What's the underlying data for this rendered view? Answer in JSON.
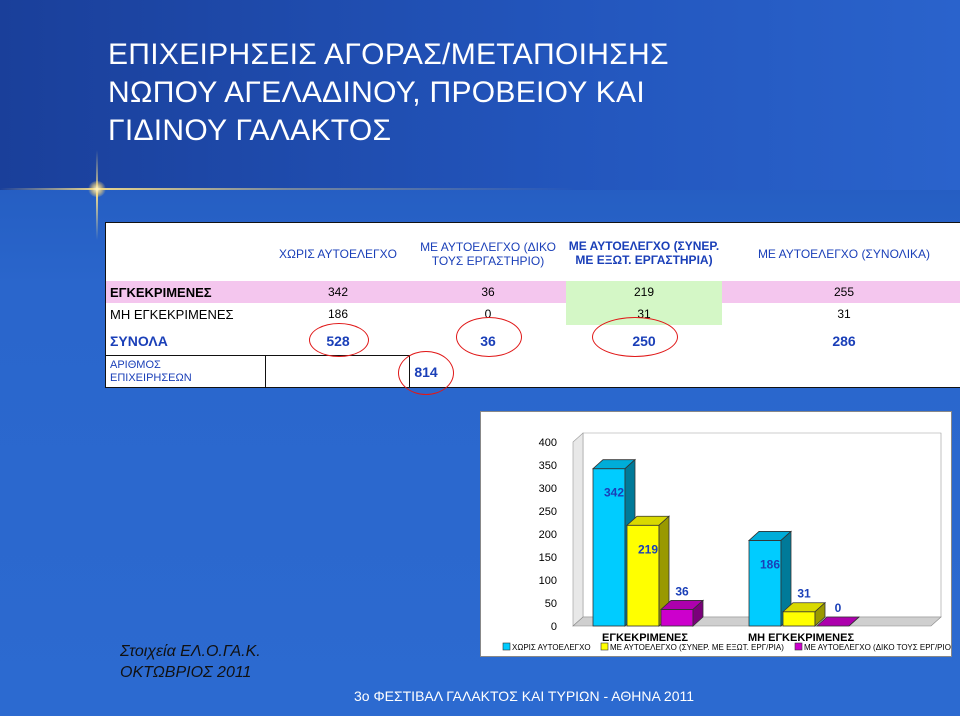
{
  "title": {
    "line1": "ΕΠΙΧΕΙΡΗΣΕΙΣ ΑΓΟΡΑΣ/ΜΕΤΑΠΟΙΗΣΗΣ",
    "line2": "ΝΩΠΟΥ ΑΓΕΛΑΔΙΝΟΥ, ΠΡΟΒΕΙΟΥ ΚΑΙ",
    "line3": "ΓΙΔΙΝΟΥ ΓΑΛΑΚΤΟΣ"
  },
  "table": {
    "headers": [
      "ΧΩΡΙΣ ΑΥΤΟΕΛΕΓΧΟ",
      "ΜΕ ΑΥΤΟΕΛΕΓΧΟ (ΔΙΚΟ ΤΟΥΣ ΕΡΓΑΣΤΗΡΙΟ)",
      "ΜΕ ΑΥΤΟΕΛΕΓΧΟ (ΣΥΝΕΡ. ΜΕ ΕΞΩΤ. ΕΡΓΑΣΤΗΡΙΑ)",
      "ΜΕ ΑΥΤΟΕΛΕΓΧΟ (ΣΥΝΟΛΙΚΑ)"
    ],
    "rows": [
      {
        "label": "ΕΓΚΕΚΡΙΜΕΝΕΣ",
        "values": [
          "342",
          "36",
          "219",
          "255"
        ]
      },
      {
        "label": "ΜΗ ΕΓΚΕΚΡΙΜΕΝΕΣ",
        "values": [
          "186",
          "0",
          "31",
          "31"
        ]
      },
      {
        "label": "ΣΥΝΟΛΑ",
        "values": [
          "528",
          "36",
          "250",
          "286"
        ]
      }
    ],
    "count_label_line1": "ΑΡΙΘΜΟΣ",
    "count_label_line2": "ΕΠΙΧΕΙΡΗΣΕΩΝ",
    "count_value": "814"
  },
  "chart_data": {
    "type": "bar",
    "categories": [
      "ΕΓΚΕΚΡΙΜΕΝΕΣ",
      "ΜΗ ΕΓΚΕΚΡΙΜΕΝΕΣ"
    ],
    "series": [
      {
        "name": "ΧΩΡΙΣ ΑΥΤΟΕΛΕΓΧΟ",
        "values": [
          342,
          186
        ],
        "color": "#00ccff"
      },
      {
        "name": "ΜΕ ΑΥΤΟΕΛΕΓΧΟ (ΣΥΝΕΡ. ΜΕ ΕΞΩΤ. ΕΡΓ/ΡΙΑ)",
        "values": [
          219,
          31
        ],
        "color": "#ffff00"
      },
      {
        "name": "ΜΕ ΑΥΤΟΕΛΕΓΧΟ (ΔΙΚΟ ΤΟΥΣ ΕΡΓ/ΡΙΟ)",
        "values": [
          36,
          0
        ],
        "color": "#cc00cc"
      }
    ],
    "ylim": [
      0,
      400
    ],
    "yticks": [
      0,
      50,
      100,
      150,
      200,
      250,
      300,
      350,
      400
    ],
    "three_d": true,
    "legend": "bottom"
  },
  "source": {
    "line1": "Στοιχεία ΕΛ.Ο.ΓΑ.Κ.",
    "line2": "ΟΚΤΩΒΡΙΟΣ 2011"
  },
  "footer": "3ο ΦΕΣΤΙΒΑΛ ΓΑΛΑΚΤΟΣ ΚΑΙ ΤΥΡΙΩΝ - ΑΘΗΝΑ 2011",
  "colors": {
    "background": "#2a63cc",
    "header_text": "#1a3fb8",
    "highlight_circle": "#e01818"
  }
}
